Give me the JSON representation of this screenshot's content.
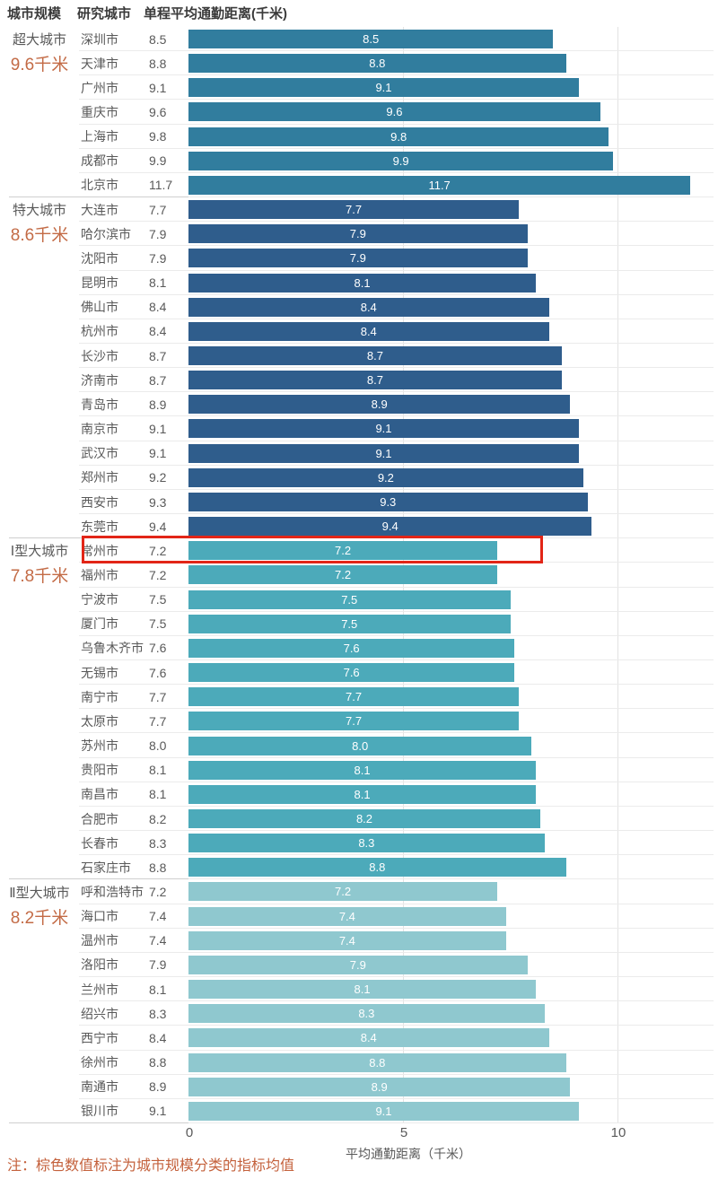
{
  "header": {
    "col_scale": "城市规模",
    "col_city": "研究城市",
    "col_metric": "单程平均通勤距离(千米)"
  },
  "chart_data": {
    "type": "bar",
    "orientation": "horizontal",
    "xlabel": "平均通勤距离（千米）",
    "x_ticks": [
      0,
      5,
      10
    ],
    "xlim": [
      0,
      12.3
    ],
    "grid": "vertical-at-ticks",
    "value_labels": "inside-bar-white",
    "groups": [
      {
        "name": "超大城市",
        "average_label": "9.6千米",
        "average_value": 9.6,
        "bar_color": "#317d9e",
        "cities": [
          {
            "name": "深圳市",
            "value": 8.5
          },
          {
            "name": "天津市",
            "value": 8.8
          },
          {
            "name": "广州市",
            "value": 9.1
          },
          {
            "name": "重庆市",
            "value": 9.6
          },
          {
            "name": "上海市",
            "value": 9.8
          },
          {
            "name": "成都市",
            "value": 9.9
          },
          {
            "name": "北京市",
            "value": 11.7
          }
        ]
      },
      {
        "name": "特大城市",
        "average_label": "8.6千米",
        "average_value": 8.6,
        "bar_color": "#2f5d8c",
        "cities": [
          {
            "name": "大连市",
            "value": 7.7
          },
          {
            "name": "哈尔滨市",
            "value": 7.9
          },
          {
            "name": "沈阳市",
            "value": 7.9
          },
          {
            "name": "昆明市",
            "value": 8.1
          },
          {
            "name": "佛山市",
            "value": 8.4
          },
          {
            "name": "杭州市",
            "value": 8.4
          },
          {
            "name": "长沙市",
            "value": 8.7
          },
          {
            "name": "济南市",
            "value": 8.7
          },
          {
            "name": "青岛市",
            "value": 8.9
          },
          {
            "name": "南京市",
            "value": 9.1
          },
          {
            "name": "武汉市",
            "value": 9.1
          },
          {
            "name": "郑州市",
            "value": 9.2
          },
          {
            "name": "西安市",
            "value": 9.3
          },
          {
            "name": "东莞市",
            "value": 9.4
          }
        ]
      },
      {
        "name": "Ⅰ型大城市",
        "average_label": "7.8千米",
        "average_value": 7.8,
        "bar_color": "#4caaba",
        "cities": [
          {
            "name": "常州市",
            "value": 7.2
          },
          {
            "name": "福州市",
            "value": 7.2
          },
          {
            "name": "宁波市",
            "value": 7.5
          },
          {
            "name": "厦门市",
            "value": 7.5
          },
          {
            "name": "乌鲁木齐市",
            "value": 7.6
          },
          {
            "name": "无锡市",
            "value": 7.6
          },
          {
            "name": "南宁市",
            "value": 7.7
          },
          {
            "name": "太原市",
            "value": 7.7
          },
          {
            "name": "苏州市",
            "value": 8.0
          },
          {
            "name": "贵阳市",
            "value": 8.1
          },
          {
            "name": "南昌市",
            "value": 8.1
          },
          {
            "name": "合肥市",
            "value": 8.2
          },
          {
            "name": "长春市",
            "value": 8.3
          },
          {
            "name": "石家庄市",
            "value": 8.8
          }
        ]
      },
      {
        "name": "Ⅱ型大城市",
        "average_label": "8.2千米",
        "average_value": 8.2,
        "bar_color": "#8fc8cf",
        "cities": [
          {
            "name": "呼和浩特市",
            "value": 7.2
          },
          {
            "name": "海口市",
            "value": 7.4
          },
          {
            "name": "温州市",
            "value": 7.4
          },
          {
            "name": "洛阳市",
            "value": 7.9
          },
          {
            "name": "兰州市",
            "value": 8.1
          },
          {
            "name": "绍兴市",
            "value": 8.3
          },
          {
            "name": "西宁市",
            "value": 8.4
          },
          {
            "name": "徐州市",
            "value": 8.8
          },
          {
            "name": "南通市",
            "value": 8.9
          },
          {
            "name": "银川市",
            "value": 9.1
          }
        ]
      }
    ],
    "highlight": {
      "city": "常州市",
      "border_color": "#e22517"
    }
  },
  "note": "注：棕色数值标注为城市规模分类的指标均值",
  "colors": {
    "average_orange": "#c36b46",
    "note_orange": "#c4613c",
    "label_gray": "#595959",
    "header_dark": "#3a3a3a",
    "row_separator": "#ebebeb",
    "group_separator": "#cfcfcf",
    "gridline": "#e3e3e3",
    "bar_value_text": "#ffffff"
  }
}
